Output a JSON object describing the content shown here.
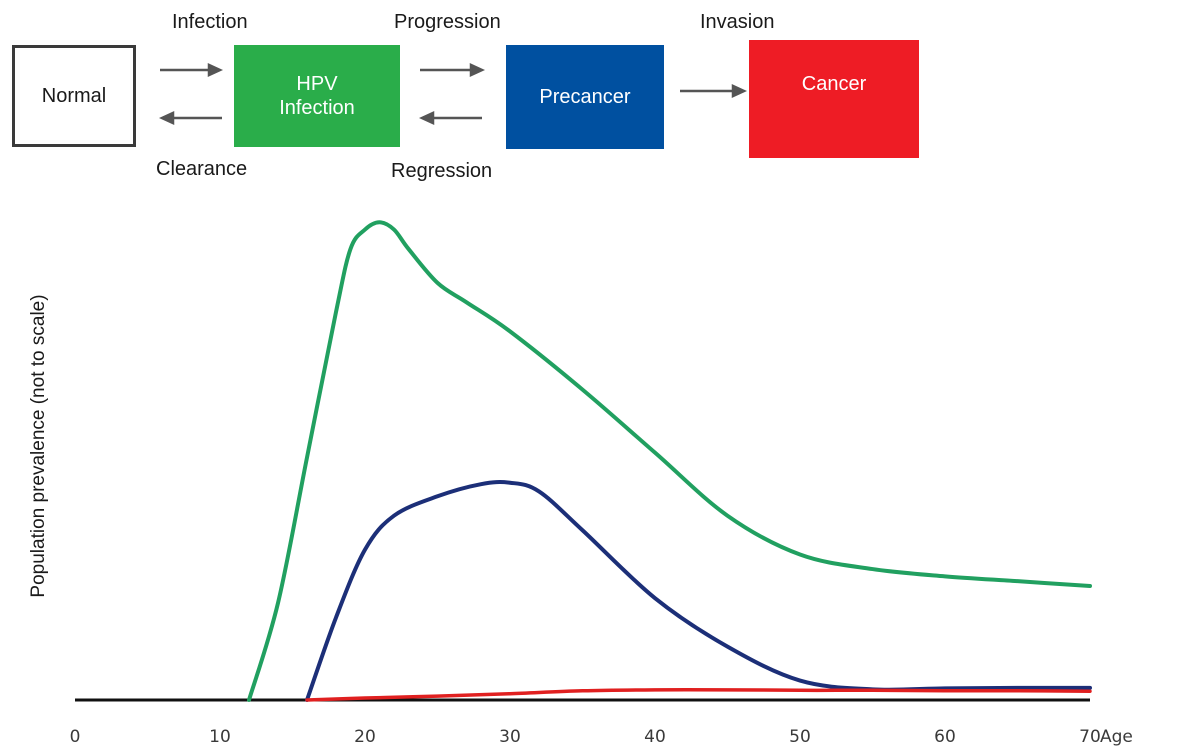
{
  "flow": {
    "boxes": [
      {
        "label": "Normal",
        "color": "#ffffff"
      },
      {
        "label": "HPV\nInfection",
        "color": "#2aad4a"
      },
      {
        "label": "Precancer",
        "color": "#0050a0"
      },
      {
        "label": "Cancer",
        "color": "#ee1c25"
      }
    ],
    "transitions": {
      "infection": "Infection",
      "clearance": "Clearance",
      "progression": "Progression",
      "regression": "Regression",
      "invasion": "Invasion"
    }
  },
  "chart_data": {
    "type": "line",
    "title": "",
    "xlabel": "Age",
    "ylabel": "Population prevalence\n(not to scale)",
    "xlim": [
      0,
      70
    ],
    "ylim": [
      0,
      100
    ],
    "xticks": [
      0,
      10,
      20,
      30,
      40,
      50,
      60,
      70
    ],
    "grid": false,
    "series": [
      {
        "color": "#21a060",
        "x": [
          12,
          14,
          16,
          18,
          19,
          20,
          21,
          22,
          23,
          25,
          27,
          30,
          35,
          40,
          45,
          50,
          55,
          60,
          65,
          70
        ],
        "y": [
          0,
          20,
          50,
          80,
          93,
          97,
          98.5,
          97,
          93,
          86,
          82,
          76,
          64,
          51,
          38,
          30,
          27,
          25.5,
          24.5,
          23.5
        ]
      },
      {
        "color": "#1c2f78",
        "x": [
          16,
          18,
          20,
          22,
          25,
          28,
          30,
          32,
          35,
          40,
          45,
          50,
          55,
          60,
          65,
          70
        ],
        "y": [
          0,
          17,
          31,
          38,
          42,
          44.5,
          44.8,
          43,
          35,
          21,
          11,
          4,
          2.2,
          2.4,
          2.5,
          2.5
        ]
      },
      {
        "color": "#e02020",
        "x": [
          16,
          20,
          25,
          30,
          35,
          40,
          45,
          50,
          55,
          60,
          65,
          70
        ],
        "y": [
          0,
          0.4,
          0.8,
          1.3,
          1.9,
          2.1,
          2.1,
          2.0,
          2.0,
          1.9,
          1.9,
          1.8
        ]
      }
    ]
  }
}
